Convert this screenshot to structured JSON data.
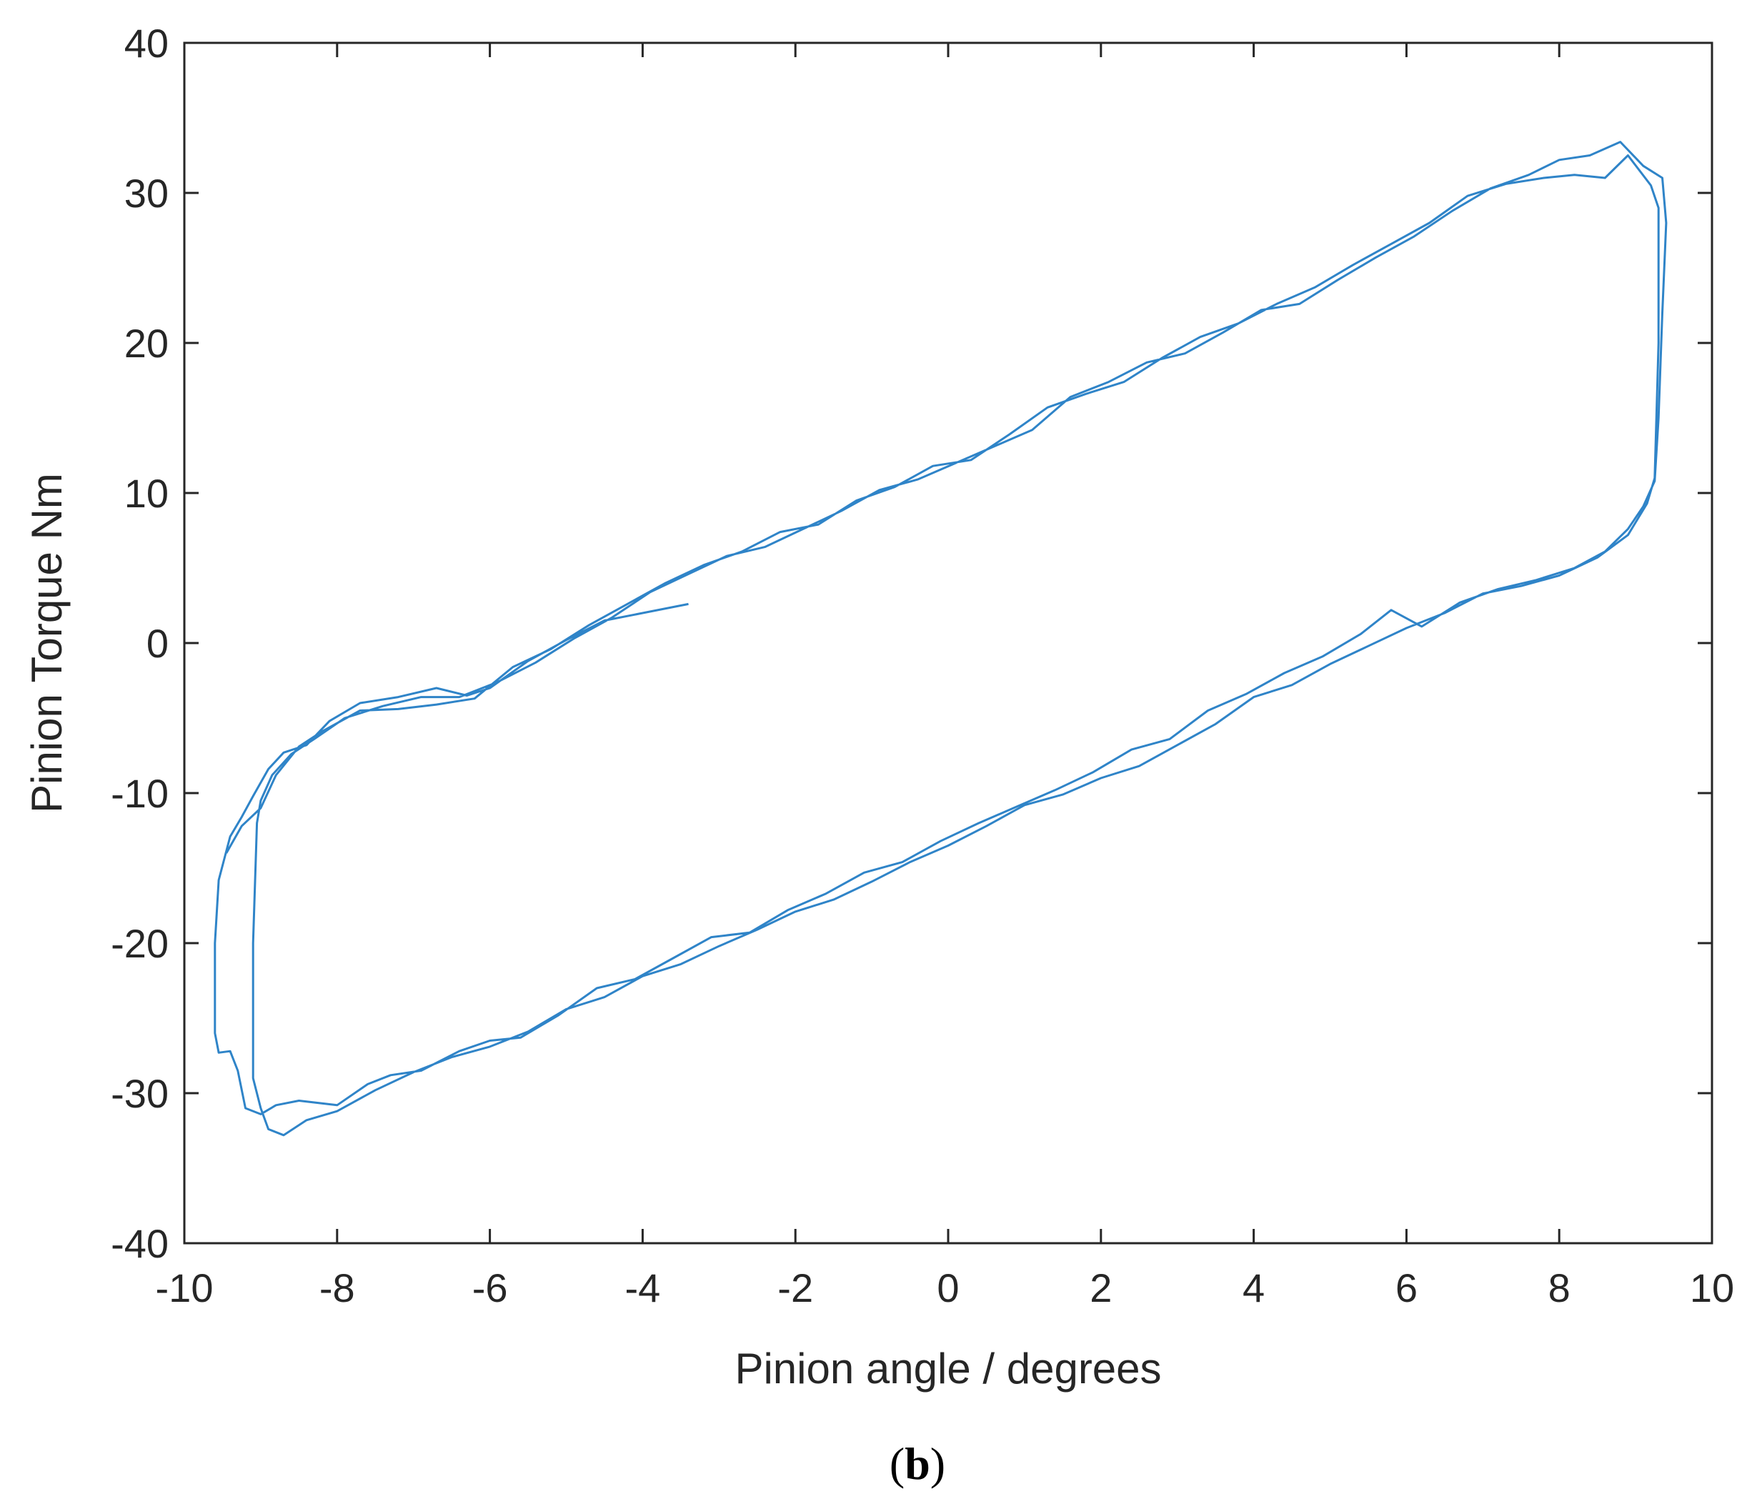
{
  "chart_data": {
    "type": "line",
    "title": "",
    "xlabel": "Pinion angle / degrees",
    "ylabel": "Pinion Torque Nm",
    "xlim": [
      -10,
      10
    ],
    "ylim": [
      -40,
      40
    ],
    "xticks": [
      -10,
      -8,
      -6,
      -4,
      -2,
      0,
      2,
      4,
      6,
      8,
      10
    ],
    "yticks": [
      -40,
      -30,
      -20,
      -10,
      0,
      10,
      20,
      30,
      40
    ],
    "xtick_labels": [
      "-10",
      "-8",
      "-6",
      "-4",
      "-2",
      "0",
      "2",
      "4",
      "6",
      "8",
      "10"
    ],
    "ytick_labels": [
      "-40",
      "-30",
      "-20",
      "-10",
      "0",
      "10",
      "20",
      "30",
      "40"
    ],
    "grid": false,
    "line_color": "#2f84c8",
    "series": [
      {
        "points": [
          [
            -3.4,
            2.6
          ],
          [
            -4.0,
            2.0
          ],
          [
            -4.5,
            1.5
          ],
          [
            -5.0,
            0.2
          ],
          [
            -5.5,
            -1.2
          ],
          [
            -6.0,
            -3.0
          ],
          [
            -6.3,
            -3.5
          ],
          [
            -6.7,
            -3.0
          ],
          [
            -7.2,
            -3.6
          ],
          [
            -7.7,
            -4.0
          ],
          [
            -8.1,
            -5.2
          ],
          [
            -8.4,
            -6.8
          ],
          [
            -8.7,
            -7.3
          ],
          [
            -8.9,
            -8.4
          ],
          [
            -9.1,
            -10.2
          ],
          [
            -9.25,
            -11.6
          ],
          [
            -9.4,
            -12.9
          ],
          [
            -9.55,
            -15.8
          ],
          [
            -9.6,
            -20.0
          ],
          [
            -9.6,
            -26.0
          ],
          [
            -9.55,
            -27.3
          ],
          [
            -9.4,
            -27.2
          ],
          [
            -9.3,
            -28.5
          ],
          [
            -9.2,
            -31.0
          ],
          [
            -9.0,
            -31.4
          ],
          [
            -8.8,
            -30.8
          ],
          [
            -8.5,
            -30.5
          ],
          [
            -8.0,
            -30.8
          ],
          [
            -7.6,
            -29.4
          ],
          [
            -7.3,
            -28.8
          ],
          [
            -6.9,
            -28.5
          ],
          [
            -6.4,
            -27.2
          ],
          [
            -6.0,
            -26.5
          ],
          [
            -5.6,
            -26.3
          ],
          [
            -5.1,
            -24.8
          ],
          [
            -4.6,
            -23.0
          ],
          [
            -4.1,
            -22.4
          ],
          [
            -3.6,
            -21.0
          ],
          [
            -3.1,
            -19.6
          ],
          [
            -2.6,
            -19.3
          ],
          [
            -2.1,
            -17.8
          ],
          [
            -1.6,
            -16.7
          ],
          [
            -1.1,
            -15.3
          ],
          [
            -0.6,
            -14.6
          ],
          [
            -0.1,
            -13.2
          ],
          [
            0.4,
            -12.0
          ],
          [
            0.9,
            -10.9
          ],
          [
            1.4,
            -9.8
          ],
          [
            1.9,
            -8.6
          ],
          [
            2.4,
            -7.1
          ],
          [
            2.9,
            -6.4
          ],
          [
            3.4,
            -4.5
          ],
          [
            3.9,
            -3.4
          ],
          [
            4.4,
            -2.0
          ],
          [
            4.9,
            -0.9
          ],
          [
            5.4,
            0.6
          ],
          [
            5.8,
            2.2
          ],
          [
            6.2,
            1.1
          ],
          [
            6.7,
            2.7
          ],
          [
            7.2,
            3.6
          ],
          [
            7.7,
            4.2
          ],
          [
            8.2,
            5.0
          ],
          [
            8.6,
            6.1
          ],
          [
            8.9,
            7.6
          ],
          [
            9.1,
            9.1
          ],
          [
            9.25,
            10.8
          ],
          [
            9.3,
            15.0
          ],
          [
            9.35,
            22.0
          ],
          [
            9.4,
            28.0
          ],
          [
            9.35,
            31.0
          ],
          [
            9.1,
            31.8
          ],
          [
            8.8,
            33.4
          ],
          [
            8.4,
            32.5
          ],
          [
            8.0,
            32.2
          ],
          [
            7.6,
            31.2
          ],
          [
            7.1,
            30.3
          ],
          [
            6.6,
            28.8
          ],
          [
            6.1,
            27.1
          ],
          [
            5.6,
            25.7
          ],
          [
            5.1,
            24.2
          ],
          [
            4.6,
            22.6
          ],
          [
            4.1,
            22.2
          ],
          [
            3.6,
            20.7
          ],
          [
            3.1,
            19.3
          ],
          [
            2.6,
            18.7
          ],
          [
            2.1,
            17.4
          ],
          [
            1.6,
            16.4
          ],
          [
            1.1,
            14.2
          ],
          [
            0.6,
            13.1
          ],
          [
            0.1,
            12.0
          ],
          [
            -0.4,
            10.9
          ],
          [
            -0.9,
            10.2
          ],
          [
            -1.4,
            8.8
          ],
          [
            -1.9,
            7.6
          ],
          [
            -2.4,
            6.4
          ],
          [
            -2.9,
            5.8
          ],
          [
            -3.4,
            4.6
          ],
          [
            -3.9,
            3.4
          ],
          [
            -4.4,
            1.7
          ],
          [
            -4.9,
            0.3
          ],
          [
            -5.4,
            -1.3
          ],
          [
            -5.9,
            -2.6
          ],
          [
            -6.4,
            -3.6
          ],
          [
            -6.9,
            -3.6
          ],
          [
            -7.4,
            -4.2
          ],
          [
            -7.9,
            -5.0
          ],
          [
            -8.3,
            -6.4
          ],
          [
            -8.6,
            -7.4
          ],
          [
            -8.85,
            -8.8
          ],
          [
            -9.0,
            -10.5
          ],
          [
            -9.05,
            -12.0
          ],
          [
            -9.1,
            -20.0
          ],
          [
            -9.1,
            -29.0
          ],
          [
            -9.0,
            -31.0
          ],
          [
            -8.9,
            -32.4
          ],
          [
            -8.7,
            -32.8
          ],
          [
            -8.4,
            -31.8
          ],
          [
            -8.0,
            -31.2
          ],
          [
            -7.5,
            -29.8
          ],
          [
            -7.0,
            -28.6
          ],
          [
            -6.5,
            -27.6
          ],
          [
            -6.0,
            -26.9
          ],
          [
            -5.5,
            -25.9
          ],
          [
            -5.0,
            -24.4
          ],
          [
            -4.5,
            -23.6
          ],
          [
            -4.0,
            -22.2
          ],
          [
            -3.5,
            -21.4
          ],
          [
            -3.0,
            -20.2
          ],
          [
            -2.5,
            -19.1
          ],
          [
            -2.0,
            -17.9
          ],
          [
            -1.5,
            -17.1
          ],
          [
            -1.0,
            -15.9
          ],
          [
            -0.5,
            -14.6
          ],
          [
            0.0,
            -13.5
          ],
          [
            0.5,
            -12.2
          ],
          [
            1.0,
            -10.8
          ],
          [
            1.5,
            -10.1
          ],
          [
            2.0,
            -9.0
          ],
          [
            2.5,
            -8.2
          ],
          [
            3.0,
            -6.8
          ],
          [
            3.5,
            -5.4
          ],
          [
            4.0,
            -3.6
          ],
          [
            4.5,
            -2.8
          ],
          [
            5.0,
            -1.4
          ],
          [
            5.5,
            -0.2
          ],
          [
            6.0,
            1.0
          ],
          [
            6.5,
            2.0
          ],
          [
            7.0,
            3.3
          ],
          [
            7.5,
            3.8
          ],
          [
            8.0,
            4.5
          ],
          [
            8.5,
            5.7
          ],
          [
            8.9,
            7.2
          ],
          [
            9.15,
            9.3
          ],
          [
            9.25,
            11.0
          ],
          [
            9.3,
            20.0
          ],
          [
            9.3,
            29.0
          ],
          [
            9.2,
            30.5
          ],
          [
            8.9,
            32.5
          ],
          [
            8.6,
            31.0
          ],
          [
            8.2,
            31.2
          ],
          [
            7.8,
            31.0
          ],
          [
            7.3,
            30.6
          ],
          [
            6.8,
            29.8
          ],
          [
            6.3,
            28.0
          ],
          [
            5.8,
            26.6
          ],
          [
            5.3,
            25.2
          ],
          [
            4.8,
            23.7
          ],
          [
            4.3,
            22.6
          ],
          [
            3.8,
            21.3
          ],
          [
            3.3,
            20.4
          ],
          [
            2.8,
            19.0
          ],
          [
            2.3,
            17.4
          ],
          [
            1.8,
            16.6
          ],
          [
            1.3,
            15.7
          ],
          [
            0.8,
            13.9
          ],
          [
            0.3,
            12.2
          ],
          [
            -0.2,
            11.8
          ],
          [
            -0.7,
            10.4
          ],
          [
            -1.2,
            9.5
          ],
          [
            -1.7,
            7.9
          ],
          [
            -2.2,
            7.4
          ],
          [
            -2.7,
            6.1
          ],
          [
            -3.2,
            5.2
          ],
          [
            -3.7,
            4.0
          ],
          [
            -4.2,
            2.6
          ],
          [
            -4.7,
            1.2
          ],
          [
            -5.2,
            -0.4
          ],
          [
            -5.7,
            -1.6
          ],
          [
            -6.2,
            -3.7
          ],
          [
            -6.7,
            -4.1
          ],
          [
            -7.2,
            -4.4
          ],
          [
            -7.7,
            -4.5
          ],
          [
            -8.2,
            -5.9
          ],
          [
            -8.5,
            -6.9
          ],
          [
            -8.8,
            -8.8
          ],
          [
            -9.0,
            -11.0
          ],
          [
            -9.25,
            -12.2
          ],
          [
            -9.45,
            -14.0
          ]
        ]
      }
    ]
  },
  "caption": {
    "open": "(",
    "letter": "b",
    "close": ")"
  }
}
